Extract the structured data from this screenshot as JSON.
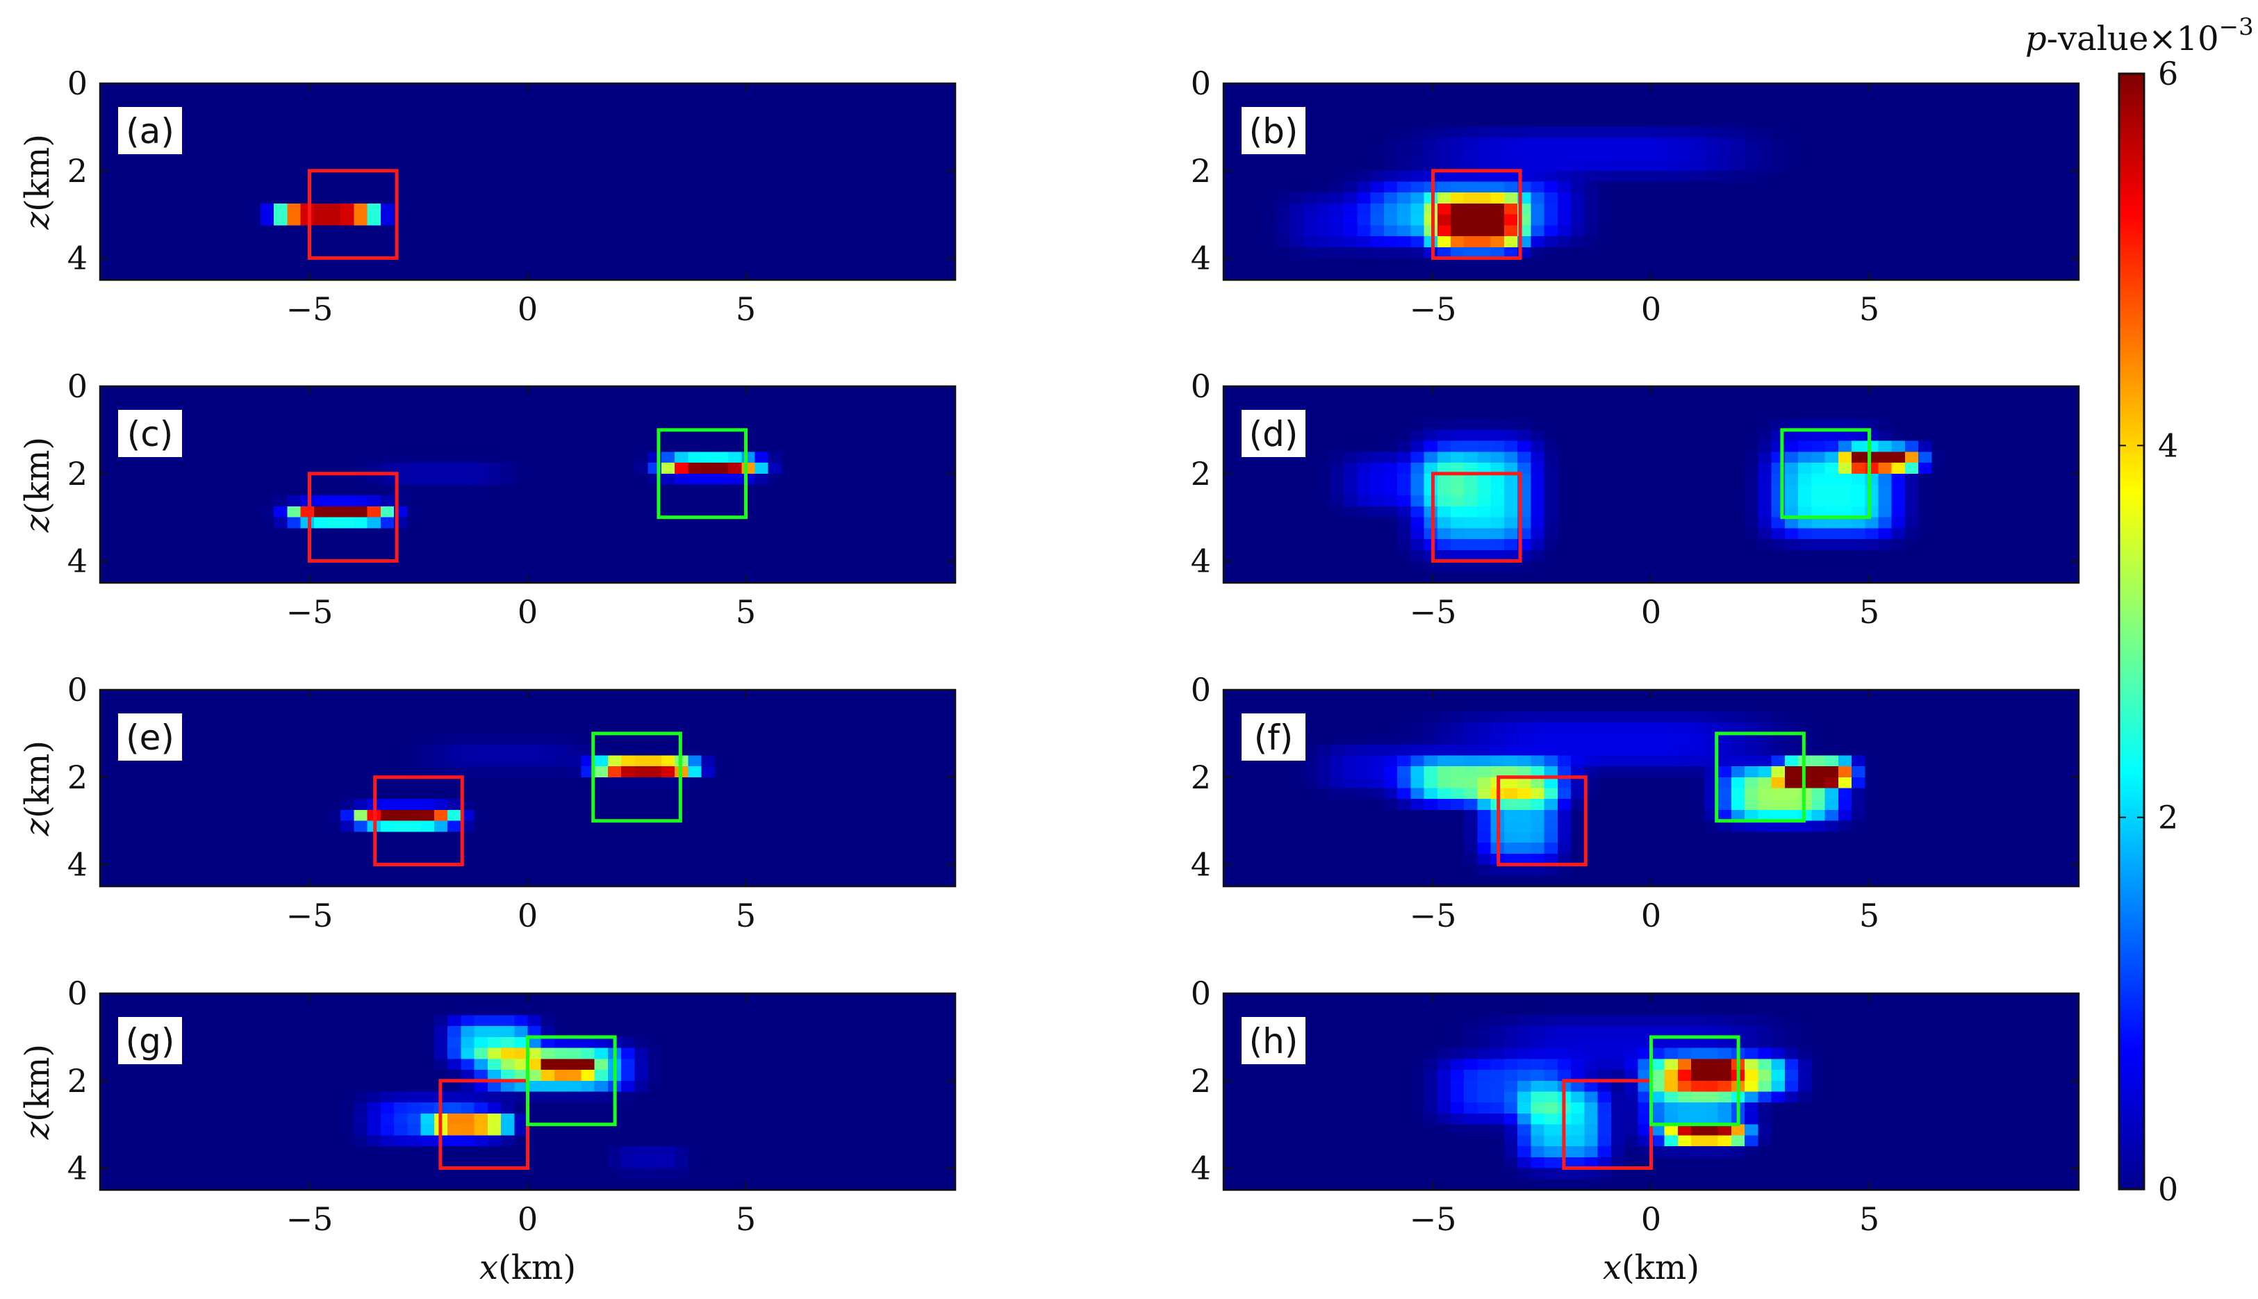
{
  "chart_data": {
    "type": "heatmap",
    "colorbar": {
      "label_prefix": "p",
      "label_rest": "-value×10",
      "label_exponent": "−3",
      "range": [
        0,
        6
      ],
      "ticks": [
        "0",
        "2",
        "4",
        "6"
      ],
      "colormap": "jet"
    },
    "axes": {
      "xlabel": "x(km)",
      "ylabel": "z(km)",
      "xlim": [
        -9.8,
        9.8
      ],
      "ylim": [
        0,
        4.5
      ],
      "y_reversed": true,
      "xticks": [
        -5,
        0,
        5
      ],
      "xtick_labels": [
        "−5",
        "0",
        "5"
      ],
      "yticks": [
        0,
        2,
        4
      ],
      "ytick_labels": [
        "0",
        "2",
        "4"
      ]
    },
    "box_colors": {
      "red": "#ff1a1a",
      "green": "#1aff1a"
    },
    "panels": [
      {
        "label": "(a)",
        "row": 0,
        "col": 0,
        "show_ylabel": true,
        "show_xlabel": false,
        "boxes": [
          {
            "color": "red",
            "x": [
              -5,
              -3
            ],
            "z": [
              2,
              4
            ]
          }
        ],
        "blobs": [
          {
            "x": -4.6,
            "z": 3.0,
            "sx": 1.1,
            "sz": 0.22,
            "a": 6.2
          }
        ]
      },
      {
        "label": "(b)",
        "row": 0,
        "col": 1,
        "show_ylabel": false,
        "show_xlabel": false,
        "boxes": [
          {
            "color": "red",
            "x": [
              -5,
              -3
            ],
            "z": [
              2,
              4
            ]
          }
        ],
        "blobs": [
          {
            "x": -4.0,
            "z": 3.2,
            "sx": 1.0,
            "sz": 0.6,
            "a": 5.2
          },
          {
            "x": -4.2,
            "z": 2.9,
            "sx": 2.2,
            "sz": 0.7,
            "a": 1.6
          },
          {
            "x": -1.5,
            "z": 1.6,
            "sx": 3.5,
            "sz": 0.5,
            "a": 0.55
          },
          {
            "x": -6.8,
            "z": 3.2,
            "sx": 1.5,
            "sz": 0.6,
            "a": 0.5
          }
        ]
      },
      {
        "label": "(c)",
        "row": 1,
        "col": 0,
        "show_ylabel": true,
        "show_xlabel": false,
        "boxes": [
          {
            "color": "red",
            "x": [
              -5,
              -3
            ],
            "z": [
              2,
              4
            ]
          },
          {
            "color": "green",
            "x": [
              3,
              5
            ],
            "z": [
              1,
              3
            ]
          }
        ],
        "blobs": [
          {
            "x": -4.3,
            "z": 2.9,
            "sx": 1.1,
            "sz": 0.22,
            "a": 6.2
          },
          {
            "x": 4.2,
            "z": 1.85,
            "sx": 1.1,
            "sz": 0.22,
            "a": 6.0
          },
          {
            "x": -2.0,
            "z": 2.0,
            "sx": 1.5,
            "sz": 0.3,
            "a": 0.25
          }
        ]
      },
      {
        "label": "(d)",
        "row": 1,
        "col": 1,
        "show_ylabel": false,
        "show_xlabel": false,
        "boxes": [
          {
            "color": "red",
            "x": [
              -5,
              -3
            ],
            "z": [
              2,
              4
            ]
          },
          {
            "color": "green",
            "x": [
              3,
              5
            ],
            "z": [
              1,
              3
            ]
          }
        ],
        "blobs": [
          {
            "x": -4.0,
            "z": 2.5,
            "sx": 1.3,
            "sz": 1.2,
            "a": 2.2
          },
          {
            "x": -5.5,
            "z": 2.2,
            "sx": 1.5,
            "sz": 0.6,
            "a": 0.7
          },
          {
            "x": 5.3,
            "z": 1.65,
            "sx": 0.85,
            "sz": 0.25,
            "a": 6.0
          },
          {
            "x": 4.2,
            "z": 2.5,
            "sx": 1.4,
            "sz": 0.9,
            "a": 2.3
          },
          {
            "x": 4.0,
            "z": 1.4,
            "sx": 1.2,
            "sz": 0.5,
            "a": 0.6
          }
        ]
      },
      {
        "label": "(e)",
        "row": 2,
        "col": 0,
        "show_ylabel": true,
        "show_xlabel": false,
        "boxes": [
          {
            "color": "red",
            "x": [
              -3.5,
              -1.5
            ],
            "z": [
              2,
              4
            ]
          },
          {
            "color": "green",
            "x": [
              1.5,
              3.5
            ],
            "z": [
              1,
              3
            ]
          }
        ],
        "blobs": [
          {
            "x": -2.8,
            "z": 2.9,
            "sx": 1.1,
            "sz": 0.22,
            "a": 6.2
          },
          {
            "x": 2.7,
            "z": 1.8,
            "sx": 1.1,
            "sz": 0.22,
            "a": 5.8
          },
          {
            "x": -0.5,
            "z": 1.5,
            "sx": 1.8,
            "sz": 0.35,
            "a": 0.22
          }
        ]
      },
      {
        "label": "(f)",
        "row": 2,
        "col": 1,
        "show_ylabel": false,
        "show_xlabel": false,
        "boxes": [
          {
            "color": "red",
            "x": [
              -3.5,
              -1.5
            ],
            "z": [
              2,
              4
            ]
          },
          {
            "color": "green",
            "x": [
              1.5,
              3.5
            ],
            "z": [
              1,
              3
            ]
          }
        ],
        "blobs": [
          {
            "x": -3.8,
            "z": 2.1,
            "sx": 1.7,
            "sz": 0.5,
            "a": 2.8
          },
          {
            "x": -3.0,
            "z": 3.0,
            "sx": 0.9,
            "sz": 0.9,
            "a": 1.8
          },
          {
            "x": 3.8,
            "z": 1.9,
            "sx": 0.8,
            "sz": 0.28,
            "a": 6.0
          },
          {
            "x": 3.0,
            "z": 2.4,
            "sx": 1.3,
            "sz": 0.6,
            "a": 3.2
          },
          {
            "x": -1.0,
            "z": 1.2,
            "sx": 3.5,
            "sz": 0.6,
            "a": 0.6
          },
          {
            "x": -6.0,
            "z": 1.8,
            "sx": 1.5,
            "sz": 0.5,
            "a": 0.5
          }
        ]
      },
      {
        "label": "(g)",
        "row": 3,
        "col": 0,
        "show_ylabel": true,
        "show_xlabel": true,
        "boxes": [
          {
            "color": "red",
            "x": [
              -2,
              0
            ],
            "z": [
              2,
              4
            ]
          },
          {
            "color": "green",
            "x": [
              0,
              2
            ],
            "z": [
              1,
              3
            ]
          }
        ],
        "blobs": [
          {
            "x": 0.9,
            "z": 1.65,
            "sx": 0.6,
            "sz": 0.2,
            "a": 6.0
          },
          {
            "x": 0.6,
            "z": 1.7,
            "sx": 1.6,
            "sz": 0.5,
            "a": 3.0
          },
          {
            "x": -0.8,
            "z": 1.1,
            "sx": 1.0,
            "sz": 0.5,
            "a": 2.0
          },
          {
            "x": -1.3,
            "z": 3.0,
            "sx": 0.9,
            "sz": 0.28,
            "a": 3.6
          },
          {
            "x": -2.2,
            "z": 2.9,
            "sx": 1.4,
            "sz": 0.5,
            "a": 1.1
          },
          {
            "x": 2.8,
            "z": 3.8,
            "sx": 0.8,
            "sz": 0.3,
            "a": 0.3
          }
        ]
      },
      {
        "label": "(h)",
        "row": 3,
        "col": 1,
        "show_ylabel": false,
        "show_xlabel": true,
        "boxes": [
          {
            "color": "red",
            "x": [
              -2,
              0
            ],
            "z": [
              2,
              4
            ]
          },
          {
            "color": "green",
            "x": [
              0,
              2
            ],
            "z": [
              1,
              3
            ]
          }
        ],
        "blobs": [
          {
            "x": 1.4,
            "z": 1.7,
            "sx": 0.5,
            "sz": 0.22,
            "a": 6.0
          },
          {
            "x": 1.6,
            "z": 1.9,
            "sx": 1.5,
            "sz": 0.45,
            "a": 3.5
          },
          {
            "x": 1.3,
            "z": 3.2,
            "sx": 0.9,
            "sz": 0.22,
            "a": 4.6
          },
          {
            "x": 1.0,
            "z": 2.5,
            "sx": 1.2,
            "sz": 0.9,
            "a": 1.8
          },
          {
            "x": -2.0,
            "z": 3.0,
            "sx": 1.0,
            "sz": 0.9,
            "a": 2.0
          },
          {
            "x": -3.3,
            "z": 2.2,
            "sx": 1.5,
            "sz": 0.7,
            "a": 1.1
          },
          {
            "x": -0.5,
            "z": 1.2,
            "sx": 3.0,
            "sz": 0.6,
            "a": 0.5
          }
        ]
      }
    ]
  }
}
